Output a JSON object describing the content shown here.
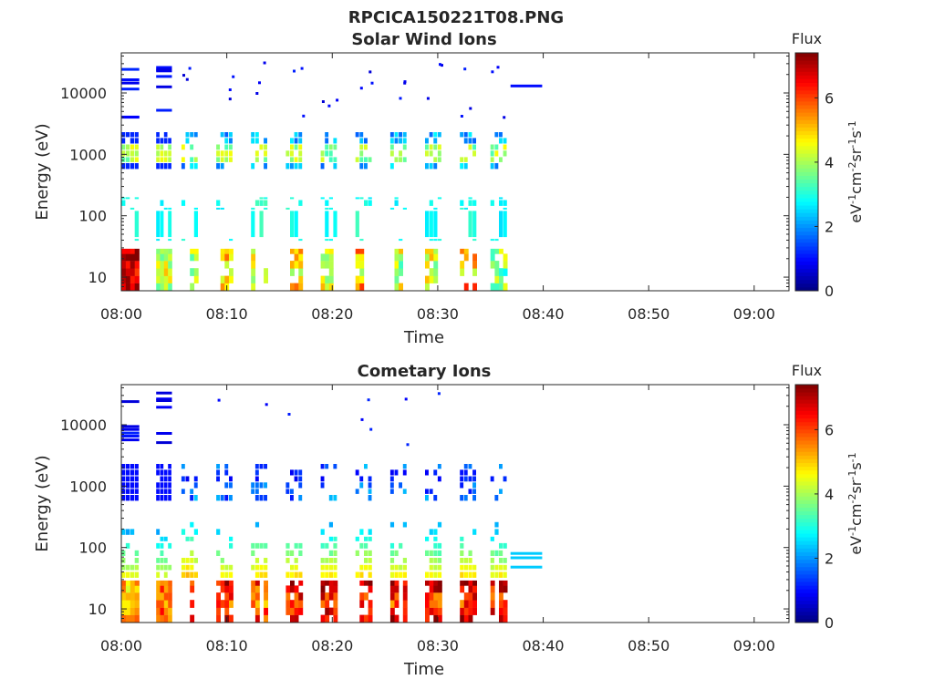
{
  "figure": {
    "title": "RPCICA150221T08.PNG"
  },
  "colorbar": {
    "title": "Flux",
    "unit_base": "eV",
    "unit_sup1": "-1",
    "unit_cm": "cm",
    "unit_sup2": "-2",
    "unit_sr": "sr",
    "unit_sup3": "-1",
    "unit_s": "s",
    "unit_sup4": "-1",
    "ticks": [
      "0",
      "2",
      "4",
      "6"
    ],
    "range": [
      0,
      7.4
    ],
    "colormap": "jet"
  },
  "chart_data": [
    {
      "type": "heatmap",
      "title": "Solar Wind Ions",
      "xlabel": "Time",
      "ylabel": "Energy (eV)",
      "x_ticks": [
        "08:00",
        "08:10",
        "08:20",
        "08:30",
        "08:40",
        "08:50",
        "09:00"
      ],
      "y_ticks": [
        "10",
        "100",
        "1000",
        "10000"
      ],
      "x_range_minutes": [
        0,
        63.3
      ],
      "y_range_eV": [
        6,
        45000
      ],
      "y_scale": "log",
      "scans": [
        {
          "start_min": 0.0,
          "end_min": 1.7,
          "low": [
            6,
            7,
            5,
            4
          ],
          "mid": [
            2.8,
            3.2
          ],
          "high": true
        },
        {
          "start_min": 3.3,
          "end_min": 4.8,
          "low": [
            5,
            4,
            3
          ],
          "mid": [
            2.6,
            3.0
          ],
          "high": true
        },
        {
          "start_min": 5.7,
          "end_min": 7.3,
          "low": [
            3.4,
            4.2
          ],
          "mid": [
            2.7,
            3.1
          ],
          "high": false
        },
        {
          "start_min": 9.0,
          "end_min": 10.6,
          "low": [
            3.6,
            5.4
          ],
          "mid": [
            2.6,
            2.9
          ],
          "high": false
        },
        {
          "start_min": 12.3,
          "end_min": 13.9,
          "low": [
            3.6,
            4.8
          ],
          "mid": [
            2.8,
            3.4
          ],
          "high": false
        },
        {
          "start_min": 15.6,
          "end_min": 17.2,
          "low": [
            3.6,
            5.0
          ],
          "mid": [
            2.6,
            3.2
          ],
          "high": false
        },
        {
          "start_min": 18.9,
          "end_min": 20.5,
          "low": [
            3.4,
            4.6
          ],
          "mid": [
            2.6,
            3.0
          ],
          "high": false
        },
        {
          "start_min": 22.2,
          "end_min": 23.8,
          "low": [
            3.6,
            5.4
          ],
          "mid": [
            2.6,
            3.3
          ],
          "high": false
        },
        {
          "start_min": 25.5,
          "end_min": 27.1,
          "low": [
            3.2,
            4.4
          ],
          "mid": [
            2.6,
            2.9
          ],
          "high": false
        },
        {
          "start_min": 28.8,
          "end_min": 30.4,
          "low": [
            3.4,
            4.8
          ],
          "mid": [
            2.6,
            3.0
          ],
          "high": false
        },
        {
          "start_min": 32.1,
          "end_min": 33.7,
          "low": [
            3.8,
            5.6
          ],
          "mid": [
            2.6,
            3.2
          ],
          "high": false
        },
        {
          "start_min": 35.0,
          "end_min": 36.6,
          "low": [
            3.2,
            4.0
          ],
          "mid": [
            2.4,
            2.9
          ],
          "high": false
        }
      ],
      "lines": [
        {
          "start_min": 36.9,
          "end_min": 39.9,
          "energy_eV": 13000,
          "flux": 1.0
        }
      ]
    },
    {
      "type": "heatmap",
      "title": "Cometary Ions",
      "xlabel": "Time",
      "ylabel": "Energy (eV)",
      "x_ticks": [
        "08:00",
        "08:10",
        "08:20",
        "08:30",
        "08:40",
        "08:50",
        "09:00"
      ],
      "y_ticks": [
        "10",
        "100",
        "1000",
        "10000"
      ],
      "x_range_minutes": [
        0,
        63.3
      ],
      "y_range_eV": [
        6,
        45000
      ],
      "y_scale": "log",
      "scans": [
        {
          "start_min": 0.0,
          "end_min": 1.7,
          "low": [
            4.4,
            5.2
          ],
          "mid": [
            1.2,
            1.6
          ],
          "high": true
        },
        {
          "start_min": 3.3,
          "end_min": 4.8,
          "low": [
            4.8,
            6.0
          ],
          "mid": [
            1.2,
            1.4
          ],
          "high": true
        },
        {
          "start_min": 5.7,
          "end_min": 7.3,
          "low": [
            5.2,
            6.4
          ],
          "mid": [
            1.8,
            2.2
          ],
          "high": false
        },
        {
          "start_min": 9.0,
          "end_min": 10.6,
          "low": [
            5.4,
            6.6
          ],
          "mid": [
            1.4,
            1.8
          ],
          "high": false
        },
        {
          "start_min": 12.3,
          "end_min": 13.9,
          "low": [
            5.0,
            6.2
          ],
          "mid": [
            1.6,
            2.0
          ],
          "high": false
        },
        {
          "start_min": 15.6,
          "end_min": 17.2,
          "low": [
            5.4,
            6.8
          ],
          "mid": [
            1.6,
            2.0
          ],
          "high": false
        },
        {
          "start_min": 18.9,
          "end_min": 20.5,
          "low": [
            5.6,
            6.8
          ],
          "mid": [
            1.5,
            1.9
          ],
          "high": false
        },
        {
          "start_min": 22.2,
          "end_min": 23.8,
          "low": [
            5.4,
            6.8
          ],
          "mid": [
            1.6,
            2.0
          ],
          "high": false
        },
        {
          "start_min": 25.5,
          "end_min": 27.1,
          "low": [
            5.4,
            6.9
          ],
          "mid": [
            1.4,
            1.8
          ],
          "high": false
        },
        {
          "start_min": 28.8,
          "end_min": 30.4,
          "low": [
            5.2,
            6.8
          ],
          "mid": [
            1.4,
            1.8
          ],
          "high": false
        },
        {
          "start_min": 32.1,
          "end_min": 33.7,
          "low": [
            5.6,
            7.0
          ],
          "mid": [
            1.6,
            2.0
          ],
          "high": false
        },
        {
          "start_min": 35.0,
          "end_min": 36.6,
          "low": [
            5.2,
            6.6
          ],
          "mid": [
            1.4,
            1.8
          ],
          "high": false
        }
      ],
      "lines": [
        {
          "start_min": 36.9,
          "end_min": 39.9,
          "energy_eV": 80,
          "flux": 2.4
        },
        {
          "start_min": 36.9,
          "end_min": 39.9,
          "energy_eV": 68,
          "flux": 2.4
        },
        {
          "start_min": 36.9,
          "end_min": 39.9,
          "energy_eV": 48,
          "flux": 2.4
        }
      ]
    }
  ]
}
